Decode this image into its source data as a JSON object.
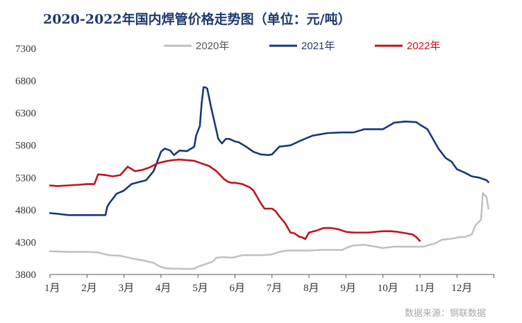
{
  "chart_data": {
    "type": "line",
    "title": "2020-2022年国内焊管价格走势图（单位：元/吨）",
    "source": "数据来源：钢联数据",
    "xlabel": "",
    "ylabel": "",
    "ylim": [
      3800,
      7300
    ],
    "yticks": [
      "3800",
      "4300",
      "4800",
      "5300",
      "5800",
      "6300",
      "6800",
      "7300"
    ],
    "ytick_values": [
      3800,
      4300,
      4800,
      5300,
      5800,
      6300,
      6800,
      7300
    ],
    "xlim": [
      1,
      12.85
    ],
    "months": [
      "1月",
      "2月",
      "3月",
      "4月",
      "5月",
      "6月",
      "7月",
      "8月",
      "9月",
      "10月",
      "11月",
      "12月"
    ],
    "legend_position": "top-right",
    "grid": false,
    "series": [
      {
        "name": "2020年",
        "color": "#c0c0c0",
        "x": [
          1.0,
          1.5,
          2.0,
          2.3,
          2.6,
          2.9,
          3.2,
          3.5,
          3.8,
          3.95,
          4.1,
          4.3,
          4.5,
          4.7,
          4.9,
          5.0,
          5.2,
          5.4,
          5.5,
          5.7,
          5.9,
          6.0,
          6.2,
          6.4,
          6.7,
          7.0,
          7.2,
          7.4,
          7.7,
          8.0,
          8.3,
          8.6,
          8.9,
          9.0,
          9.2,
          9.5,
          9.8,
          10.0,
          10.3,
          10.6,
          10.9,
          11.1,
          11.2,
          11.4,
          11.6,
          11.8,
          12.0,
          12.1,
          12.2,
          12.4,
          12.5,
          12.6,
          12.65,
          12.7,
          12.8,
          12.85
        ],
        "values": [
          4160,
          4150,
          4150,
          4140,
          4100,
          4090,
          4050,
          4020,
          3980,
          3930,
          3900,
          3890,
          3890,
          3885,
          3890,
          3920,
          3960,
          4000,
          4060,
          4070,
          4060,
          4070,
          4100,
          4100,
          4100,
          4110,
          4150,
          4170,
          4170,
          4170,
          4180,
          4180,
          4180,
          4210,
          4250,
          4260,
          4230,
          4210,
          4230,
          4230,
          4230,
          4230,
          4250,
          4280,
          4340,
          4350,
          4370,
          4380,
          4380,
          4420,
          4560,
          4620,
          4650,
          5060,
          5000,
          4820
        ]
      },
      {
        "name": "2021年",
        "color": "#14387f",
        "x": [
          1.0,
          1.2,
          1.5,
          1.8,
          2.0,
          2.3,
          2.5,
          2.55,
          2.6,
          2.8,
          3.0,
          3.2,
          3.4,
          3.6,
          3.8,
          3.9,
          4.0,
          4.1,
          4.25,
          4.35,
          4.5,
          4.7,
          4.9,
          4.95,
          5.05,
          5.1,
          5.15,
          5.2,
          5.25,
          5.35,
          5.45,
          5.55,
          5.65,
          5.75,
          5.85,
          6.0,
          6.1,
          6.3,
          6.5,
          6.7,
          6.9,
          7.0,
          7.1,
          7.2,
          7.5,
          7.8,
          8.1,
          8.5,
          8.9,
          9.2,
          9.5,
          9.8,
          10.0,
          10.3,
          10.6,
          10.9,
          11.0,
          11.2,
          11.35,
          11.5,
          11.7,
          11.85,
          12.0,
          12.2,
          12.4,
          12.6,
          12.7,
          12.8,
          12.85
        ],
        "values": [
          4750,
          4740,
          4720,
          4720,
          4720,
          4720,
          4720,
          4850,
          4900,
          5050,
          5100,
          5200,
          5230,
          5260,
          5400,
          5550,
          5700,
          5750,
          5720,
          5650,
          5720,
          5710,
          5780,
          5950,
          6100,
          6450,
          6700,
          6700,
          6680,
          6400,
          6150,
          5900,
          5830,
          5900,
          5900,
          5860,
          5850,
          5780,
          5700,
          5660,
          5650,
          5660,
          5720,
          5780,
          5800,
          5880,
          5950,
          5990,
          6000,
          6000,
          6050,
          6050,
          6050,
          6150,
          6170,
          6160,
          6120,
          6050,
          5900,
          5750,
          5600,
          5550,
          5430,
          5380,
          5320,
          5300,
          5280,
          5260,
          5230
        ]
      },
      {
        "name": "2022年",
        "color": "#c0121b",
        "x": [
          1.0,
          1.2,
          1.5,
          1.8,
          2.0,
          2.2,
          2.3,
          2.5,
          2.7,
          2.9,
          3.1,
          3.3,
          3.5,
          3.7,
          3.9,
          4.1,
          4.3,
          4.5,
          4.7,
          4.9,
          5.1,
          5.3,
          5.5,
          5.7,
          5.8,
          5.9,
          6.0,
          6.2,
          6.4,
          6.5,
          6.6,
          6.7,
          6.8,
          7.0,
          7.1,
          7.2,
          7.35,
          7.5,
          7.6,
          7.7,
          7.75,
          7.8,
          7.9,
          8.0,
          8.2,
          8.4,
          8.6,
          8.8,
          9.0,
          9.2,
          9.4,
          9.6,
          9.8,
          10.0,
          10.2,
          10.4,
          10.6,
          10.8,
          10.9,
          11.0
        ],
        "values": [
          5180,
          5170,
          5180,
          5190,
          5200,
          5200,
          5350,
          5340,
          5320,
          5340,
          5470,
          5400,
          5420,
          5460,
          5520,
          5550,
          5570,
          5580,
          5570,
          5560,
          5520,
          5480,
          5400,
          5280,
          5240,
          5220,
          5220,
          5200,
          5150,
          5100,
          5000,
          4900,
          4820,
          4820,
          4780,
          4700,
          4600,
          4450,
          4440,
          4400,
          4380,
          4380,
          4350,
          4450,
          4480,
          4520,
          4520,
          4500,
          4460,
          4450,
          4450,
          4450,
          4460,
          4470,
          4470,
          4460,
          4440,
          4420,
          4380,
          4320
        ]
      }
    ]
  }
}
